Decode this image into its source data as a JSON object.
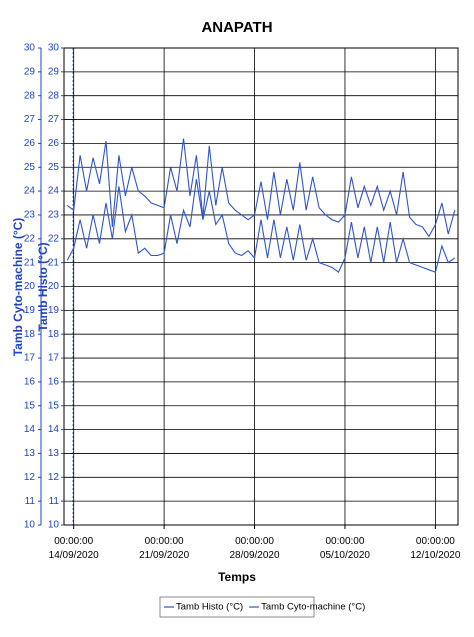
{
  "chart_data": {
    "type": "line",
    "title": "ANAPATH",
    "x_label": "Temps",
    "y_label": "Tamb Histo (°C)",
    "y2_label": "Tamb Cyto-machine (°C)",
    "x": [
      "2020-09-13 12:00",
      "2020-09-14 00:00",
      "2020-09-14 12:00",
      "2020-09-15 00:00",
      "2020-09-15 12:00",
      "2020-09-16 00:00",
      "2020-09-16 12:00",
      "2020-09-17 00:00",
      "2020-09-17 12:00",
      "2020-09-18 00:00",
      "2020-09-18 12:00",
      "2020-09-19 00:00",
      "2020-09-19 12:00",
      "2020-09-20 00:00",
      "2020-09-20 12:00",
      "2020-09-21 00:00",
      "2020-09-21 12:00",
      "2020-09-22 00:00",
      "2020-09-22 12:00",
      "2020-09-23 00:00",
      "2020-09-23 12:00",
      "2020-09-24 00:00",
      "2020-09-24 12:00",
      "2020-09-25 00:00",
      "2020-09-25 12:00",
      "2020-09-26 00:00",
      "2020-09-26 12:00",
      "2020-09-27 00:00",
      "2020-09-27 12:00",
      "2020-09-28 00:00",
      "2020-09-28 12:00",
      "2020-09-29 00:00",
      "2020-09-29 12:00",
      "2020-09-30 00:00",
      "2020-09-30 12:00",
      "2020-10-01 00:00",
      "2020-10-01 12:00",
      "2020-10-02 00:00",
      "2020-10-02 12:00",
      "2020-10-03 00:00",
      "2020-10-03 12:00",
      "2020-10-04 00:00",
      "2020-10-04 12:00",
      "2020-10-05 00:00",
      "2020-10-05 12:00",
      "2020-10-06 00:00",
      "2020-10-06 12:00",
      "2020-10-07 00:00",
      "2020-10-07 12:00",
      "2020-10-08 00:00",
      "2020-10-08 12:00",
      "2020-10-09 00:00",
      "2020-10-09 12:00",
      "2020-10-10 00:00",
      "2020-10-10 12:00",
      "2020-10-11 00:00",
      "2020-10-11 12:00",
      "2020-10-12 00:00",
      "2020-10-12 12:00",
      "2020-10-13 00:00",
      "2020-10-13 12:00"
    ],
    "series": [
      {
        "name": "Tamb Histo (°C)",
        "color": "#2f55c8",
        "axis": "y",
        "values": [
          21.1,
          21.6,
          22.8,
          21.6,
          23.0,
          21.8,
          23.5,
          22.0,
          24.2,
          22.3,
          23.0,
          21.4,
          21.6,
          21.3,
          21.3,
          21.4,
          23.0,
          21.8,
          23.2,
          22.5,
          24.5,
          22.8,
          24.0,
          22.6,
          23.0,
          21.8,
          21.4,
          21.3,
          21.5,
          21.2,
          22.8,
          21.2,
          22.8,
          21.2,
          22.5,
          21.1,
          22.6,
          21.1,
          22.0,
          21.0,
          20.9,
          20.8,
          20.6,
          21.2,
          22.7,
          21.2,
          22.5,
          21.0,
          22.5,
          21.0,
          22.7,
          21.0,
          22.0,
          21.0,
          20.9,
          20.8,
          20.7,
          20.6,
          21.7,
          21.0,
          21.2
        ]
      },
      {
        "name": "Tamb Cyto-machine (°C)",
        "color": "#2f55c8",
        "axis": "y2",
        "values": [
          23.4,
          23.2,
          25.5,
          24.0,
          25.4,
          24.3,
          26.1,
          22.5,
          25.5,
          23.8,
          25.0,
          24.0,
          23.8,
          23.5,
          23.4,
          23.3,
          25.0,
          24.0,
          26.2,
          23.8,
          25.5,
          22.9,
          25.9,
          23.4,
          25.0,
          23.5,
          23.2,
          23.0,
          22.8,
          23.0,
          24.4,
          22.8,
          24.8,
          23.0,
          24.5,
          23.2,
          25.2,
          23.2,
          24.6,
          23.3,
          23.0,
          22.8,
          22.7,
          23.0,
          24.6,
          23.3,
          24.2,
          23.4,
          24.2,
          23.2,
          24.0,
          23.0,
          24.8,
          22.9,
          22.6,
          22.5,
          22.1,
          22.6,
          23.5,
          22.2,
          23.2
        ]
      }
    ],
    "xlim": [
      "2020-09-13 06:00",
      "2020-10-13 18:00"
    ],
    "xticks": [
      {
        "value": "2020-09-14 00:00",
        "label": "00:00:00 14/09/2020"
      },
      {
        "value": "2020-09-21 00:00",
        "label": "00:00:00 21/09/2020"
      },
      {
        "value": "2020-09-28 00:00",
        "label": "00:00:00 28/09/2020"
      },
      {
        "value": "2020-10-05 00:00",
        "label": "00:00:00 05/10/2020"
      },
      {
        "value": "2020-10-12 00:00",
        "label": "00:00:00 12/10/2020"
      }
    ],
    "ylim": [
      10,
      30
    ],
    "yticks": [
      10,
      11,
      12,
      13,
      14,
      15,
      16,
      17,
      18,
      19,
      20,
      21,
      22,
      23,
      24,
      25,
      26,
      27,
      28,
      29,
      30
    ],
    "y2lim": [
      10,
      30
    ],
    "y2ticks": [
      10,
      11,
      12,
      13,
      14,
      15,
      16,
      17,
      18,
      19,
      20,
      21,
      22,
      23,
      24,
      25,
      26,
      27,
      28,
      29,
      30
    ],
    "grid": true,
    "legend": "bottom"
  }
}
